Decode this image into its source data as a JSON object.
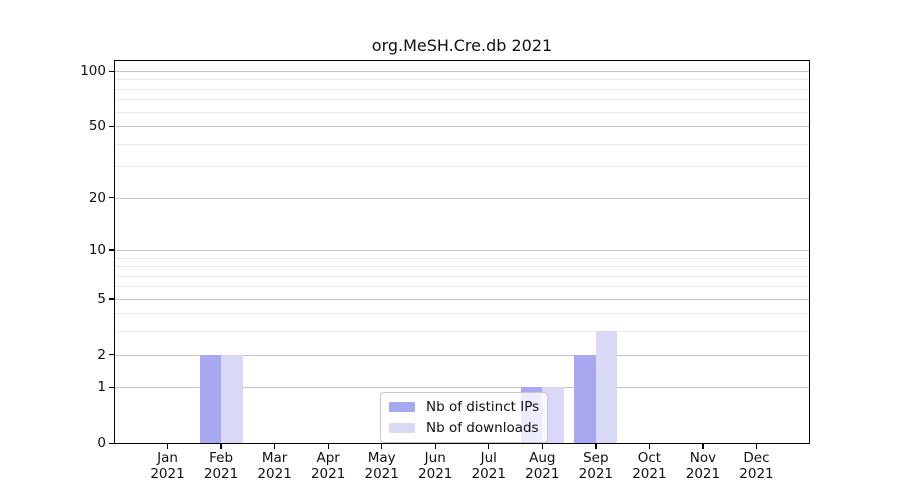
{
  "chart_data": {
    "type": "bar",
    "title": "org.MeSH.Cre.db 2021",
    "categories": [
      "Jan 2021",
      "Feb 2021",
      "Mar 2021",
      "Apr 2021",
      "May 2021",
      "Jun 2021",
      "Jul 2021",
      "Aug 2021",
      "Sep 2021",
      "Oct 2021",
      "Nov 2021",
      "Dec 2021"
    ],
    "x_tick_labels": [
      {
        "month": "Jan",
        "year": "2021"
      },
      {
        "month": "Feb",
        "year": "2021"
      },
      {
        "month": "Mar",
        "year": "2021"
      },
      {
        "month": "Apr",
        "year": "2021"
      },
      {
        "month": "May",
        "year": "2021"
      },
      {
        "month": "Jun",
        "year": "2021"
      },
      {
        "month": "Jul",
        "year": "2021"
      },
      {
        "month": "Aug",
        "year": "2021"
      },
      {
        "month": "Sep",
        "year": "2021"
      },
      {
        "month": "Oct",
        "year": "2021"
      },
      {
        "month": "Nov",
        "year": "2021"
      },
      {
        "month": "Dec",
        "year": "2021"
      }
    ],
    "series": [
      {
        "name": "Nb of distinct IPs",
        "color": "#a8a8f0",
        "values": [
          0,
          2,
          0,
          0,
          0,
          0,
          0,
          1,
          2,
          0,
          0,
          0
        ]
      },
      {
        "name": "Nb of downloads",
        "color": "#d9d9f7",
        "values": [
          0,
          2,
          0,
          0,
          0,
          0,
          0,
          1,
          3,
          0,
          0,
          0
        ]
      }
    ],
    "yscale": "log1p",
    "ylim": [
      0,
      105
    ],
    "y_major_ticks": [
      0,
      1,
      2,
      5,
      10,
      20,
      50,
      100
    ],
    "y_minor_ticks": [
      3,
      4,
      6,
      7,
      8,
      9,
      30,
      40,
      60,
      70,
      80,
      90
    ],
    "grid": "horizontal-both",
    "legend_position": "lower-center"
  },
  "legend": {
    "items": [
      {
        "label": "Nb of distinct IPs"
      },
      {
        "label": "Nb of downloads"
      }
    ]
  },
  "colors": {
    "distinct_ips_bar": "#a8a8f0",
    "downloads_bar": "#d9d9f7",
    "major_gridline": "#c6c6c6",
    "minor_gridline": "#eaeaea",
    "axis_spine": "#000000",
    "legend_border": "#c9c9c9"
  }
}
